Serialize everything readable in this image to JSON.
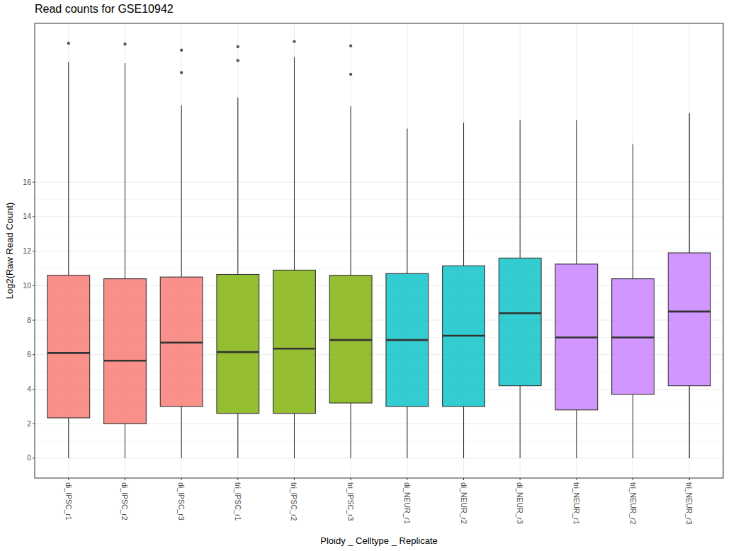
{
  "chart_data": {
    "type": "box",
    "title": "Read counts for GSE10942",
    "x_label": "Ploidy _ Celltype _ Replicate",
    "y_label": "Log2(Raw Read Count)",
    "categories": [
      "di_IPSC_r1",
      "di_IPSC_r2",
      "di_IPSC_r3",
      "tri_IPSC_r1",
      "tri_IPSC_r2",
      "tri_IPSC_r3",
      "di_NEUR_r1",
      "di_NEUR_r2",
      "di_NEUR_r3",
      "tri_NEUR_r1",
      "tri_NEUR_r2",
      "tri_NEUR_r3"
    ],
    "whisker_low": [
      0,
      0,
      0,
      0,
      0,
      0,
      0,
      0,
      0,
      0,
      0,
      0
    ],
    "q1": [
      2.34,
      2.0,
      3.0,
      2.6,
      2.6,
      3.2,
      3.0,
      3.0,
      4.2,
      2.8,
      3.7,
      4.2
    ],
    "median": [
      6.1,
      5.65,
      6.7,
      6.15,
      6.35,
      6.85,
      6.85,
      7.1,
      8.4,
      7.0,
      7.0,
      8.5
    ],
    "q3": [
      10.6,
      10.4,
      10.5,
      10.65,
      10.9,
      10.6,
      10.7,
      11.15,
      11.6,
      11.25,
      10.4,
      11.9
    ],
    "whisker_high": [
      22.95,
      22.9,
      20.45,
      20.9,
      23.25,
      20.4,
      19.1,
      19.45,
      19.6,
      19.6,
      18.2,
      20.0
    ],
    "outliers": [
      [
        24.05
      ],
      [
        24.0
      ],
      [
        23.65,
        22.35
      ],
      [
        23.85,
        23.05
      ],
      [
        24.15
      ],
      [
        23.9,
        22.25
      ],
      [],
      [],
      [],
      [],
      [],
      []
    ],
    "colors": [
      "#F8766D",
      "#F8766D",
      "#F8766D",
      "#7CAE00",
      "#7CAE00",
      "#7CAE00",
      "#00BFC4",
      "#00BFC4",
      "#00BFC4",
      "#C77CFF",
      "#C77CFF",
      "#C77CFF"
    ],
    "ylim": [
      -1.15,
      25.2
    ],
    "yticks": [
      0,
      2,
      4,
      6,
      8,
      10,
      12,
      14,
      16
    ],
    "grid": true
  }
}
